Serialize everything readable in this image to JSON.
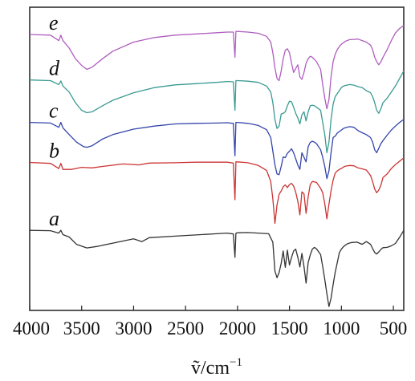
{
  "chart_data": {
    "type": "line",
    "xlabel": "ṽ/cm⁻¹",
    "xlabel_main": "ṽ/cm",
    "xlabel_sup": "−1",
    "ylabel": "",
    "x_reversed": true,
    "xlim": [
      4000,
      400
    ],
    "x_ticks": [
      4000,
      3500,
      3000,
      2500,
      2000,
      1500,
      1000,
      500
    ],
    "x_tick_labels": [
      "4000",
      "3500",
      "3000",
      "2500",
      "2000",
      "1500",
      "1000",
      "500"
    ],
    "y_ticks_shown": false,
    "ylim": [
      0,
      100
    ],
    "grid": false,
    "legend": "none",
    "series": [
      {
        "name": "a",
        "color": "#333333",
        "x": [
          4000,
          3800,
          3720,
          3700,
          3680,
          3620,
          3550,
          3450,
          3350,
          3200,
          3000,
          2920,
          2850,
          2600,
          2400,
          2200,
          2100,
          2040,
          2025,
          2015,
          2000,
          1900,
          1800,
          1700,
          1660,
          1640,
          1620,
          1600,
          1580,
          1560,
          1540,
          1520,
          1500,
          1480,
          1460,
          1440,
          1420,
          1400,
          1380,
          1360,
          1340,
          1320,
          1300,
          1280,
          1260,
          1240,
          1200,
          1180,
          1160,
          1140,
          1120,
          1100,
          1080,
          1060,
          1040,
          1020,
          1000,
          980,
          960,
          940,
          900,
          850,
          800,
          760,
          720,
          700,
          680,
          660,
          640,
          620,
          600,
          560,
          520,
          480,
          440,
          400
        ],
        "y": [
          26.4,
          26.3,
          25.5,
          26.4,
          25.0,
          24.2,
          21.8,
          20.6,
          21.1,
          22.2,
          23.6,
          22.7,
          24.0,
          24.5,
          24.9,
          25.3,
          25.5,
          25.2,
          17.5,
          25.5,
          25.6,
          25.7,
          25.5,
          25.3,
          22.5,
          13.0,
          10.8,
          12.5,
          15.5,
          19.6,
          14.2,
          19.9,
          15.0,
          17.5,
          19.6,
          20.2,
          17.5,
          14.3,
          18.8,
          14.5,
          9.0,
          15.8,
          18.3,
          20.2,
          20.8,
          20.3,
          18.4,
          14.5,
          10.2,
          5.5,
          1.3,
          4.0,
          8.5,
          12.6,
          15.8,
          19.0,
          20.2,
          21.0,
          21.6,
          22.0,
          22.4,
          22.5,
          21.8,
          22.7,
          21.8,
          20.4,
          19.1,
          18.6,
          19.3,
          20.1,
          20.7,
          20.8,
          21.3,
          22.1,
          24.1,
          26.4
        ]
      },
      {
        "name": "b",
        "color": "#cc3333",
        "x": [
          4000,
          3800,
          3720,
          3700,
          3680,
          3650,
          3600,
          3500,
          3400,
          3300,
          3100,
          2950,
          2850,
          2600,
          2400,
          2200,
          2100,
          2040,
          2025,
          2015,
          2000,
          1900,
          1800,
          1720,
          1680,
          1660,
          1640,
          1620,
          1600,
          1580,
          1560,
          1540,
          1520,
          1500,
          1480,
          1460,
          1440,
          1420,
          1400,
          1380,
          1360,
          1340,
          1320,
          1300,
          1280,
          1260,
          1240,
          1200,
          1180,
          1160,
          1140,
          1120,
          1100,
          1080,
          1060,
          1040,
          1020,
          1000,
          980,
          960,
          920,
          880,
          840,
          800,
          760,
          720,
          700,
          680,
          660,
          640,
          620,
          600,
          560,
          520,
          480,
          440,
          400
        ],
        "y": [
          48.8,
          48.5,
          46.8,
          48.5,
          46.5,
          46.5,
          46.5,
          47.2,
          47.0,
          47.5,
          48.3,
          48.0,
          48.6,
          48.7,
          48.9,
          48.9,
          48.9,
          48.6,
          36.5,
          49.0,
          49.0,
          48.7,
          47.8,
          46.2,
          42.5,
          36.8,
          28.7,
          34.8,
          38.3,
          39.4,
          40.8,
          41.4,
          40.5,
          41.5,
          41.9,
          41.0,
          39.0,
          36.0,
          31.5,
          39.1,
          38.5,
          32.0,
          37.5,
          41.5,
          42.5,
          42.4,
          42.2,
          40.3,
          38.8,
          35.2,
          30.2,
          35.0,
          39.5,
          43.0,
          45.3,
          46.0,
          46.5,
          46.8,
          47.3,
          47.6,
          47.8,
          47.7,
          47.0,
          46.7,
          46.3,
          44.5,
          42.5,
          40.0,
          38.8,
          39.7,
          41.3,
          43.8,
          45.0,
          46.8,
          48.1,
          49.2,
          50.3
        ]
      },
      {
        "name": "c",
        "color": "#3344aa",
        "x": [
          4000,
          3800,
          3720,
          3700,
          3680,
          3620,
          3550,
          3480,
          3450,
          3400,
          3300,
          3200,
          3000,
          2800,
          2600,
          2400,
          2200,
          2100,
          2040,
          2025,
          2015,
          2000,
          1900,
          1800,
          1720,
          1680,
          1660,
          1640,
          1620,
          1600,
          1580,
          1560,
          1540,
          1520,
          1500,
          1480,
          1460,
          1440,
          1420,
          1400,
          1380,
          1360,
          1340,
          1320,
          1300,
          1280,
          1260,
          1240,
          1200,
          1180,
          1160,
          1140,
          1120,
          1100,
          1080,
          1060,
          1040,
          1020,
          1000,
          980,
          960,
          920,
          880,
          840,
          800,
          760,
          720,
          700,
          680,
          660,
          640,
          620,
          600,
          560,
          520,
          480,
          440,
          400
        ],
        "y": [
          62.0,
          61.8,
          60.4,
          62.0,
          60.2,
          58.0,
          55.5,
          54.0,
          53.8,
          54.3,
          56.5,
          58.0,
          59.8,
          60.8,
          61.5,
          61.7,
          61.8,
          61.9,
          61.7,
          51.0,
          62.0,
          62.0,
          61.7,
          61.0,
          59.6,
          57.0,
          52.5,
          48.0,
          45.0,
          44.8,
          47.5,
          50.6,
          50.4,
          51.8,
          52.5,
          53.3,
          52.0,
          50.0,
          48.0,
          46.5,
          52.0,
          50.5,
          49.0,
          54.0,
          55.4,
          55.8,
          55.5,
          55.0,
          53.0,
          50.5,
          47.5,
          43.5,
          46.0,
          52.0,
          57.0,
          57.5,
          58.5,
          59.0,
          59.5,
          60.0,
          60.3,
          60.6,
          60.4,
          59.3,
          58.6,
          58.0,
          57.0,
          55.5,
          53.0,
          52.0,
          53.5,
          55.0,
          56.0,
          57.8,
          59.5,
          60.8,
          62.0,
          63.0
        ]
      },
      {
        "name": "d",
        "color": "#3a9a92",
        "x": [
          4000,
          3800,
          3720,
          3700,
          3680,
          3620,
          3560,
          3500,
          3450,
          3400,
          3300,
          3200,
          3000,
          2800,
          2600,
          2400,
          2200,
          2100,
          2040,
          2025,
          2015,
          2000,
          1900,
          1800,
          1720,
          1680,
          1660,
          1640,
          1620,
          1600,
          1580,
          1560,
          1540,
          1520,
          1500,
          1480,
          1460,
          1440,
          1420,
          1400,
          1380,
          1360,
          1340,
          1320,
          1300,
          1280,
          1260,
          1240,
          1200,
          1180,
          1160,
          1140,
          1120,
          1100,
          1080,
          1060,
          1040,
          1020,
          1000,
          980,
          960,
          920,
          880,
          840,
          800,
          760,
          720,
          700,
          680,
          660,
          640,
          620,
          600,
          560,
          520,
          480,
          440,
          400
        ],
        "y": [
          76.0,
          75.8,
          74.5,
          75.7,
          74.0,
          72.0,
          68.5,
          66.0,
          65.2,
          65.5,
          67.5,
          69.3,
          71.8,
          73.5,
          74.4,
          74.8,
          75.2,
          75.5,
          75.4,
          66.0,
          75.8,
          75.8,
          75.6,
          75.2,
          74.0,
          72.0,
          68.5,
          63.0,
          60.0,
          60.8,
          64.8,
          65.0,
          65.5,
          67.5,
          69.0,
          68.8,
          67.0,
          65.0,
          63.5,
          61.5,
          64.5,
          65.5,
          62.5,
          65.5,
          67.5,
          67.7,
          67.5,
          67.0,
          66.0,
          62.0,
          58.0,
          52.0,
          55.5,
          63.0,
          68.0,
          70.5,
          71.5,
          72.5,
          73.5,
          74.0,
          74.2,
          74.5,
          74.3,
          73.8,
          73.5,
          72.5,
          71.8,
          70.5,
          68.5,
          66.0,
          65.0,
          66.5,
          68.5,
          70.0,
          72.0,
          74.0,
          76.5,
          79.0
        ]
      },
      {
        "name": "e",
        "color": "#b05dc0",
        "x": [
          4000,
          3800,
          3720,
          3700,
          3680,
          3620,
          3560,
          3500,
          3450,
          3400,
          3300,
          3200,
          3000,
          2800,
          2600,
          2400,
          2200,
          2100,
          2040,
          2025,
          2015,
          2000,
          1900,
          1800,
          1720,
          1680,
          1660,
          1640,
          1620,
          1600,
          1580,
          1560,
          1540,
          1520,
          1500,
          1480,
          1460,
          1440,
          1420,
          1400,
          1380,
          1360,
          1340,
          1320,
          1300,
          1280,
          1260,
          1240,
          1200,
          1180,
          1160,
          1140,
          1120,
          1100,
          1080,
          1060,
          1040,
          1020,
          1000,
          980,
          960,
          920,
          880,
          840,
          800,
          760,
          720,
          700,
          680,
          660,
          640,
          620,
          600,
          560,
          520,
          480,
          440,
          400
        ],
        "y": [
          91.0,
          90.8,
          89.0,
          90.8,
          89.0,
          86.5,
          83.0,
          80.8,
          79.5,
          80.2,
          83.0,
          85.5,
          88.5,
          90.0,
          90.8,
          91.2,
          91.6,
          91.8,
          91.8,
          83.5,
          92.0,
          92.0,
          91.8,
          91.4,
          90.4,
          88.5,
          85.0,
          80.0,
          76.5,
          75.8,
          79.0,
          83.0,
          85.8,
          86.3,
          85.0,
          81.5,
          78.5,
          79.8,
          81.0,
          77.0,
          76.2,
          78.5,
          81.5,
          83.0,
          83.8,
          83.5,
          82.8,
          82.0,
          79.5,
          74.5,
          70.0,
          66.5,
          69.5,
          77.0,
          82.0,
          84.5,
          86.0,
          87.0,
          87.8,
          88.3,
          88.8,
          89.3,
          89.4,
          89.5,
          89.0,
          88.5,
          87.5,
          86.0,
          83.5,
          82.0,
          81.0,
          82.0,
          83.5,
          86.0,
          89.0,
          91.5,
          93.0,
          94.0
        ]
      }
    ]
  }
}
